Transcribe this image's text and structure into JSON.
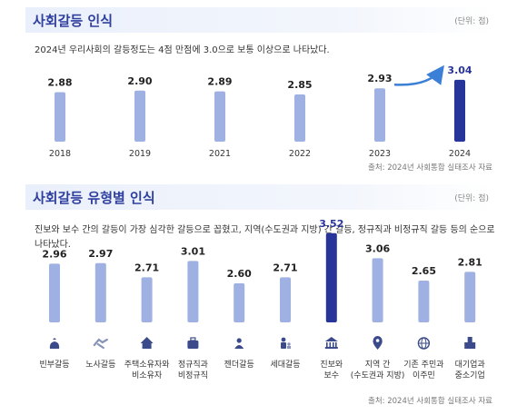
{
  "section1": {
    "title": "사회갈등 인식",
    "unit": "(단위: 점)",
    "description": "2024년 우리사회의 갈등정도는 4점 만점에 3.0으로 보통 이상으로 나타났다.",
    "source": "출처: 2024년 사회통합 실태조사 자료"
  },
  "section2": {
    "title": "사회갈등 유형별 인식",
    "unit": "(단위: 점)",
    "description_line1": "진보와 보수 간의 갈등이 가장 심각한 갈등으로 꼽혔고, 지역(수도권과 지방) 간 갈등, 정규직과 비정규직 갈등 등의 순으로",
    "description_line2": "나타났다.",
    "source": "출처: 2024년 사회통합 실태조사 자료"
  },
  "colors": {
    "accent": "#2f3f9e",
    "bar": "#9fb0e2",
    "bar_highlight": "#27349a"
  },
  "chart_data": [
    {
      "type": "bar",
      "categories": [
        "2018",
        "2019",
        "2021",
        "2022",
        "2023",
        "2024"
      ],
      "values": [
        2.88,
        2.9,
        2.89,
        2.85,
        2.93,
        3.04
      ],
      "value_labels": [
        "2.88",
        "2.90",
        "2.89",
        "2.85",
        "2.93",
        "3.04"
      ],
      "highlight_index": 5,
      "arrow_between": [
        4,
        5
      ]
    },
    {
      "type": "bar",
      "categories": [
        "빈부갈등",
        "노사갈등",
        "주택소유자와\n비소유자",
        "정규직과\n비정규직",
        "젠더갈등",
        "세대갈등",
        "진보와\n보수",
        "지역 간\n(수도권과 지방)",
        "기존 주민과\n이주민",
        "대기업과\n중소기업"
      ],
      "values": [
        2.96,
        2.97,
        2.71,
        3.01,
        2.6,
        2.71,
        3.52,
        3.06,
        2.65,
        2.81
      ],
      "value_labels": [
        "2.96",
        "2.97",
        "2.71",
        "3.01",
        "2.60",
        "2.71",
        "3.52",
        "3.06",
        "2.65",
        "2.81"
      ],
      "icons": [
        "money-bag-icon",
        "handshake-icon",
        "house-icon",
        "briefcase-icon",
        "person-icon",
        "family-icon",
        "bank-icon",
        "map-pin-icon",
        "globe-icon",
        "building-icon"
      ],
      "highlight_index": 6
    }
  ]
}
